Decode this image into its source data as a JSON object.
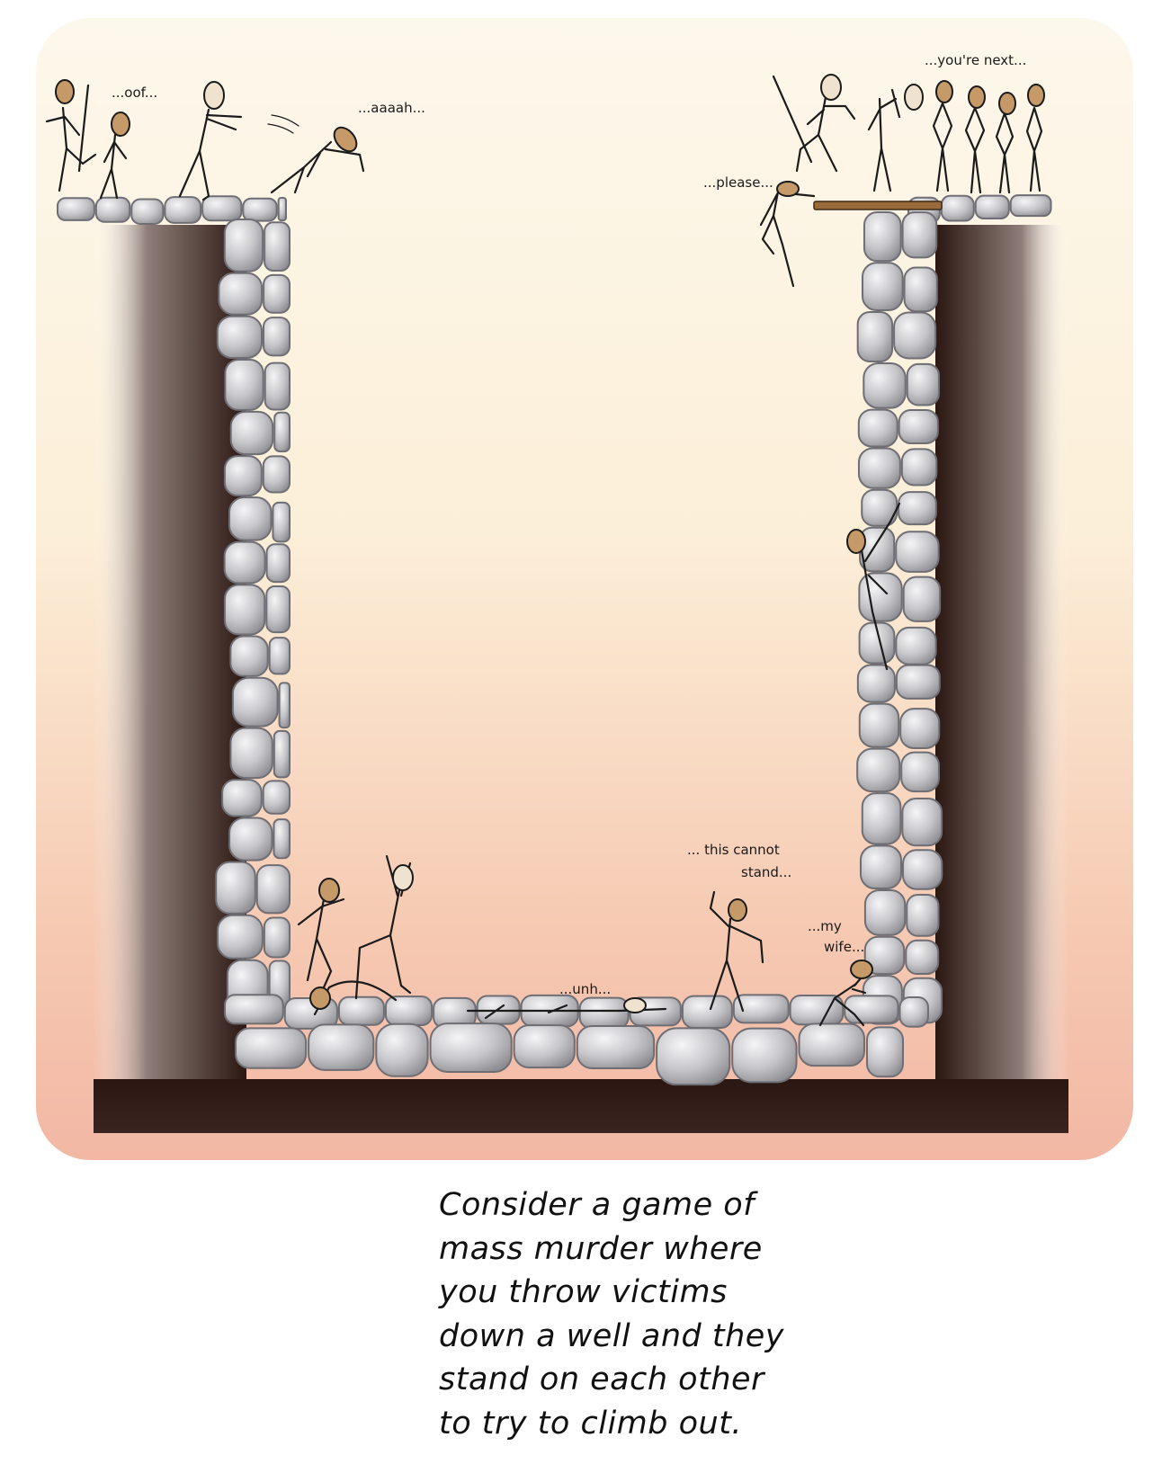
{
  "speech": {
    "oof": "...oof...",
    "aaaah": "...aaaah...",
    "youre_next": "...you're next...",
    "please": "...please...",
    "this_cannot_1": "... this cannot",
    "this_cannot_2": "stand...",
    "my_wife_1": "...my",
    "my_wife_2": "wife...",
    "unh": "...unh..."
  },
  "caption": {
    "lines": [
      "Consider a game of",
      "mass murder where",
      "you throw victims",
      "down a well and they",
      "stand on each other",
      "to try to climb out."
    ]
  },
  "colors": {
    "sky_top": "#fdf8ec",
    "glow_bottom": "#f2b8a4",
    "shaft_dark": "#2b1712",
    "stone": "#c9c9cc",
    "stone_edge": "#707075",
    "skin": "#c69a68",
    "plank": "#9a6a3a"
  }
}
